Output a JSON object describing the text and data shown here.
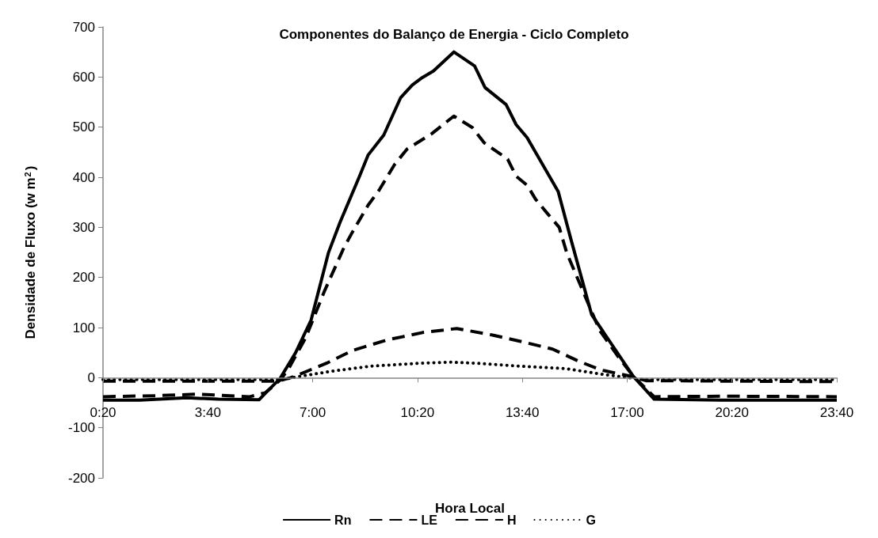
{
  "chart_data": {
    "type": "line",
    "title": "Componentes do Balanço de Energia - Ciclo Completo",
    "xlabel": "Hora Local",
    "ylabel": "Densidade de Fluxo (w m$^{2}$)",
    "xlim": [
      0.333,
      23.667
    ],
    "xticks": [
      {
        "value": 0.3333,
        "label": "0:20"
      },
      {
        "value": 3.6667,
        "label": "3:40"
      },
      {
        "value": 7,
        "label": "7:00"
      },
      {
        "value": 10.3333,
        "label": "10:20"
      },
      {
        "value": 13.6667,
        "label": "13:40"
      },
      {
        "value": 17,
        "label": "17:00"
      },
      {
        "value": 20.3333,
        "label": "20:20"
      },
      {
        "value": 23.6667,
        "label": "23:40"
      }
    ],
    "ylim": [
      -200,
      700
    ],
    "yticks": [
      -200,
      -100,
      0,
      100,
      200,
      300,
      400,
      500,
      600,
      700
    ],
    "grid": false,
    "legend": "bottom",
    "marker": "none",
    "series": [
      {
        "name": "Rn",
        "color": "#000000",
        "line_style": "solid",
        "x": [
          0.333,
          1.5,
          3.0,
          4,
          5.3,
          5.54,
          5.96,
          6.45,
          6.95,
          7.5,
          7.87,
          8.49,
          8.76,
          9.26,
          9.8,
          10.17,
          10.49,
          10.84,
          11.49,
          12.15,
          12.48,
          13.15,
          13.47,
          13.82,
          14.81,
          15.2,
          15.87,
          17.19,
          17.86,
          20,
          23.667
        ],
        "values": [
          -45,
          -45,
          -40,
          -43,
          -44,
          -28,
          -2,
          49,
          115,
          249,
          310,
          402,
          444,
          484,
          559,
          584,
          599,
          612,
          650,
          622,
          579,
          545,
          505,
          479,
          371,
          279,
          126,
          3,
          -43,
          -45,
          -45
        ]
      },
      {
        "name": "LE",
        "color": "#000000",
        "line_style": "dashed",
        "x": [
          0.333,
          2,
          3.3,
          5,
          5.5,
          6.0,
          6.28,
          6.78,
          7.37,
          7.99,
          8.26,
          8.76,
          9.11,
          9.6,
          10.0,
          10.79,
          11.49,
          12.08,
          12.45,
          13.2,
          13.47,
          13.82,
          14.09,
          14.46,
          14.84,
          15.08,
          15.7,
          16.12,
          16.69,
          17.19,
          17.86,
          20,
          23.667
        ],
        "values": [
          -38,
          -36,
          -33,
          -38,
          -30,
          -3,
          23,
          80,
          172,
          259,
          290,
          344,
          374,
          425,
          456,
          487,
          522,
          499,
          469,
          436,
          402,
          384,
          356,
          328,
          300,
          249,
          157,
          95,
          44,
          3,
          -38,
          -37,
          -38
        ]
      },
      {
        "name": "H",
        "color": "#000000",
        "line_style": "dashed",
        "x": [
          0.333,
          5.9,
          6.3,
          6.63,
          7.45,
          8.26,
          9.35,
          10.49,
          11.58,
          12.72,
          13.64,
          14.63,
          15.45,
          16.19,
          17.11,
          17.6,
          23.667
        ],
        "values": [
          -7,
          -7,
          0,
          8,
          29,
          54,
          75,
          90,
          98,
          85,
          72,
          57,
          33,
          15,
          3,
          -6,
          -8
        ]
      },
      {
        "name": "G",
        "color": "#000000",
        "line_style": "dotted",
        "x": [
          0.333,
          6.0,
          6.63,
          7.62,
          8.86,
          10.49,
          11.33,
          12.15,
          13.57,
          15.05,
          16.29,
          17.04,
          17.5,
          23.667
        ],
        "values": [
          -4,
          -4,
          3,
          13,
          23,
          29,
          31,
          29,
          23,
          18,
          6,
          0,
          -4,
          -4
        ]
      }
    ]
  }
}
